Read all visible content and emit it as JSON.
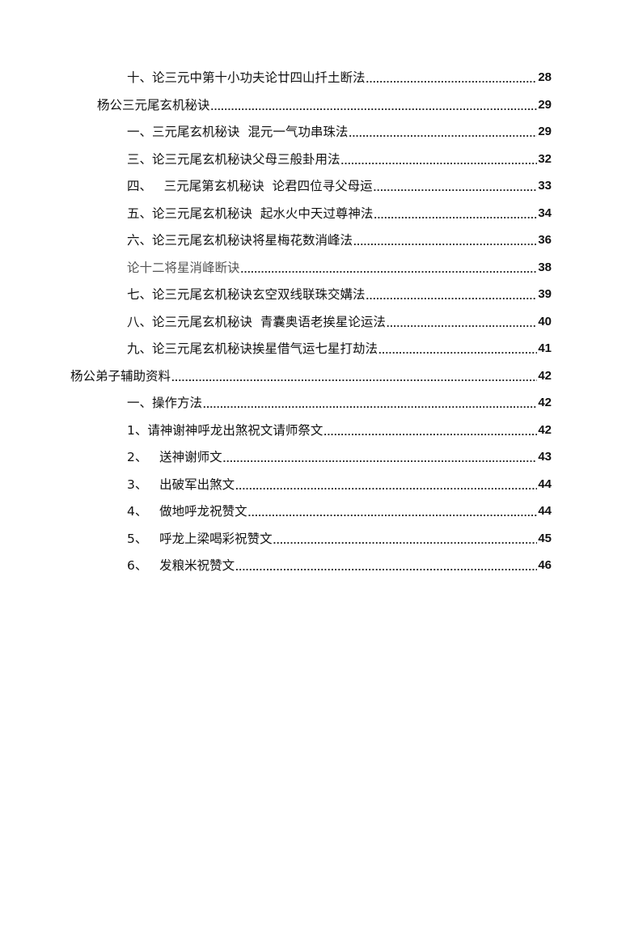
{
  "toc": [
    {
      "title": "十、论三元中第十小功夫论廿四山扦土断法",
      "page": "28",
      "level": 2
    },
    {
      "title": "杨公三元尾玄机秘诀",
      "page": "29",
      "level": 1
    },
    {
      "title": "一、三元尾玄机秘诀  混元一气功串珠法",
      "page": "29",
      "level": 2
    },
    {
      "title": "三、论三元尾玄机秘诀父母三般卦用法",
      "page": "32",
      "level": 2
    },
    {
      "title": "四、   三元尾第玄机秘诀  论君四位寻父母运",
      "page": "33",
      "level": 2
    },
    {
      "title": "五、论三元尾玄机秘诀  起水火中天过尊神法",
      "page": "34",
      "level": 2
    },
    {
      "title": "六、论三元尾玄机秘诀将星梅花数消峰法",
      "page": "36",
      "level": 2
    },
    {
      "title": "论十二将星消峰断诀",
      "page": "38",
      "level": 2,
      "gray": true
    },
    {
      "title": "七、论三元尾玄机秘诀玄空双线联珠交媾法",
      "page": "39",
      "level": 2
    },
    {
      "title": "八、论三元尾玄机秘诀  青囊奥语老挨星论运法",
      "page": "40",
      "level": 2
    },
    {
      "title": "九、论三元尾玄机秘诀挨星借气运七星打劫法",
      "page": "41",
      "level": 2
    },
    {
      "title": "杨公弟子辅助资料",
      "page": "42",
      "level": 0
    },
    {
      "title": "一、操作方法",
      "page": "42",
      "level": 2
    },
    {
      "title": "1、请神谢神呼龙出煞祝文请师祭文",
      "page": "42",
      "level": 2
    },
    {
      "title": "2、   送神谢师文",
      "page": "43",
      "level": 2
    },
    {
      "title": "3、   出破军出煞文",
      "page": "44",
      "level": 2
    },
    {
      "title": "4、   做地呼龙祝赞文",
      "page": "44",
      "level": 2
    },
    {
      "title": "5、   呼龙上梁喝彩祝赞文",
      "page": "45",
      "level": 2
    },
    {
      "title": "6、   发粮米祝赞文",
      "page": "46",
      "level": 2
    }
  ]
}
